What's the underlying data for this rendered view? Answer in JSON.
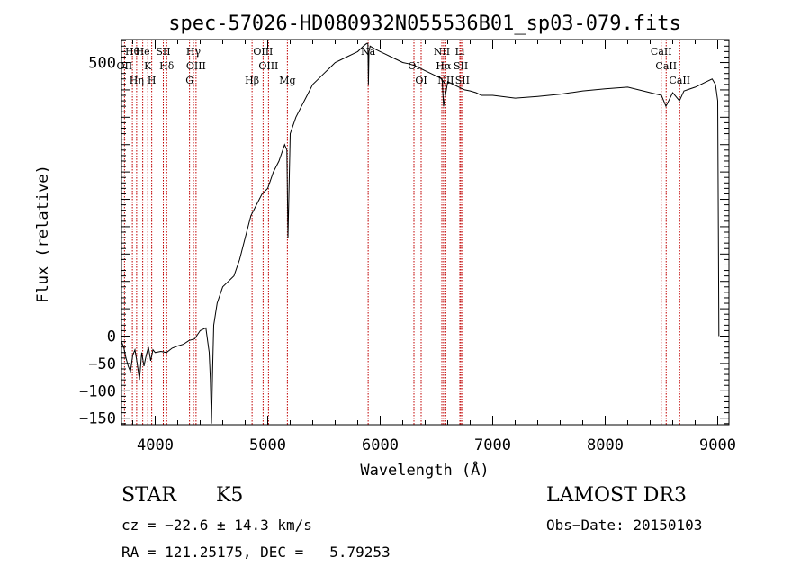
{
  "chart_data": {
    "type": "line",
    "title": "spec-57026-HD080932N055536B01_sp03-079.fits",
    "xlabel": "Wavelength (Å)",
    "ylabel": "Flux (relative)",
    "xlim": [
      3700,
      9100
    ],
    "ylim": [
      -162,
      542
    ],
    "x_ticks": [
      4000,
      5000,
      6000,
      7000,
      8000,
      9000
    ],
    "x_tick_labels": [
      "4000",
      "5000",
      "6000",
      "7000",
      "8000",
      "9000"
    ],
    "y_ticks": [
      -150,
      -100,
      -50,
      0,
      500
    ],
    "y_tick_labels": [
      "−150",
      "−100",
      "−50",
      "0",
      "500"
    ],
    "series": [
      {
        "name": "spectrum",
        "x": [
          3700,
          3720,
          3740,
          3760,
          3780,
          3800,
          3820,
          3840,
          3860,
          3880,
          3900,
          3920,
          3940,
          3960,
          3980,
          4000,
          4050,
          4100,
          4150,
          4200,
          4250,
          4300,
          4350,
          4400,
          4450,
          4480,
          4490,
          4500,
          4510,
          4520,
          4550,
          4600,
          4650,
          4700,
          4750,
          4800,
          4850,
          4900,
          4950,
          5000,
          5050,
          5100,
          5150,
          5170,
          5180,
          5200,
          5250,
          5300,
          5350,
          5400,
          5450,
          5500,
          5550,
          5600,
          5650,
          5700,
          5750,
          5800,
          5850,
          5880,
          5890,
          5895,
          5900,
          5910,
          5950,
          6000,
          6050,
          6100,
          6150,
          6200,
          6250,
          6300,
          6350,
          6400,
          6450,
          6500,
          6550,
          6563,
          6600,
          6650,
          6700,
          6750,
          6800,
          6850,
          6900,
          7000,
          7200,
          7400,
          7600,
          7800,
          8000,
          8200,
          8400,
          8500,
          8540,
          8600,
          8660,
          8700,
          8800,
          8900,
          8950,
          8980,
          9000,
          9010
        ],
        "y": [
          -10,
          -20,
          -40,
          -55,
          -65,
          -35,
          -25,
          -50,
          -80,
          -30,
          -55,
          -35,
          -20,
          -45,
          -25,
          -30,
          -28,
          -30,
          -22,
          -18,
          -15,
          -8,
          -5,
          10,
          15,
          -30,
          -80,
          -160,
          -60,
          20,
          60,
          90,
          100,
          110,
          140,
          180,
          220,
          240,
          260,
          270,
          300,
          320,
          350,
          340,
          180,
          370,
          400,
          420,
          440,
          460,
          470,
          480,
          490,
          500,
          505,
          510,
          515,
          520,
          530,
          535,
          535,
          460,
          520,
          530,
          525,
          520,
          515,
          510,
          505,
          500,
          498,
          495,
          490,
          485,
          480,
          475,
          470,
          420,
          465,
          460,
          455,
          450,
          448,
          445,
          440,
          440,
          435,
          438,
          442,
          448,
          452,
          455,
          445,
          440,
          420,
          445,
          430,
          448,
          455,
          465,
          470,
          460,
          430,
          0
        ]
      }
    ],
    "lines": [
      {
        "label": "Hθ",
        "x": 3797
      },
      {
        "label": "OII",
        "x": 3727
      },
      {
        "label": "Hη",
        "x": 3835
      },
      {
        "label": "He",
        "x": 3889
      },
      {
        "label": "K",
        "x": 3934
      },
      {
        "label": "H",
        "x": 3969
      },
      {
        "label": "SII",
        "x": 4072
      },
      {
        "label": "Hδ",
        "x": 4102
      },
      {
        "label": "G",
        "x": 4305
      },
      {
        "label": "Hγ",
        "x": 4340
      },
      {
        "label": "OIII",
        "x": 4363
      },
      {
        "label": "Hβ",
        "x": 4861
      },
      {
        "label": "OIII",
        "x": 4959
      },
      {
        "label": "OIII",
        "x": 5007
      },
      {
        "label": "Mg",
        "x": 5175
      },
      {
        "label": "Na",
        "x": 5893
      },
      {
        "label": "OI",
        "x": 6300
      },
      {
        "label": "OI",
        "x": 6364
      },
      {
        "label": "NII",
        "x": 6548
      },
      {
        "label": "Hα",
        "x": 6563
      },
      {
        "label": "NII",
        "x": 6583
      },
      {
        "label": "Li",
        "x": 6708
      },
      {
        "label": "SII",
        "x": 6717
      },
      {
        "label": "SII",
        "x": 6731
      },
      {
        "label": "CaII",
        "x": 8498
      },
      {
        "label": "CaII",
        "x": 8542
      },
      {
        "label": "CaII",
        "x": 8662
      }
    ]
  },
  "info": {
    "object_class": "STAR",
    "subclass": "K5",
    "survey": "LAMOST DR3",
    "redshift": "cz = −22.6 ± 14.3 km/s",
    "obs_date": "Obs−Date: 20150103",
    "coords": "RA = 121.25175, DEC =   5.79253"
  }
}
